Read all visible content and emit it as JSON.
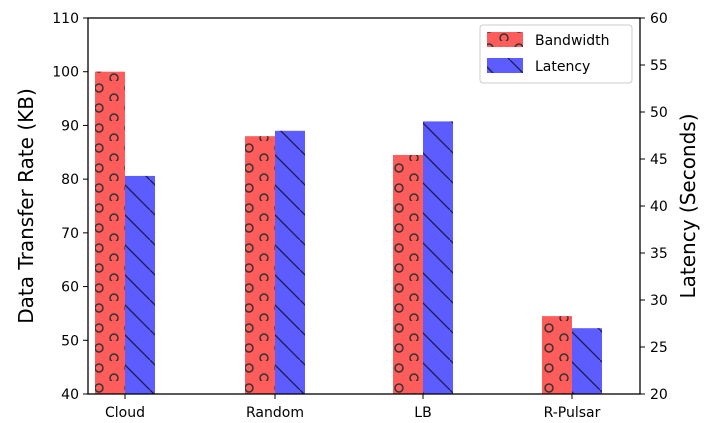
{
  "chart_data": {
    "type": "bar",
    "categories": [
      "Cloud",
      "Random",
      "LB",
      "R-Pulsar"
    ],
    "series": [
      {
        "name": "Bandwidth",
        "axis": "left",
        "color": "#ff5c5c",
        "pattern": "circles",
        "values": [
          100,
          88,
          84.5,
          54.5
        ]
      },
      {
        "name": "Latency",
        "axis": "right",
        "color": "#5c5cff",
        "pattern": "diagonal-lines",
        "values": [
          43.2,
          48,
          49,
          27
        ]
      }
    ],
    "ylabel": "Data Transfer Rate (KB)",
    "ylim": [
      40,
      110
    ],
    "yticks": [
      40,
      50,
      60,
      70,
      80,
      90,
      100,
      110
    ],
    "y2label": "Latency (Seconds)",
    "y2lim": [
      20,
      60
    ],
    "y2ticks": [
      20,
      25,
      30,
      35,
      40,
      45,
      50,
      55,
      60
    ],
    "grid": false,
    "legend": "top-right"
  }
}
